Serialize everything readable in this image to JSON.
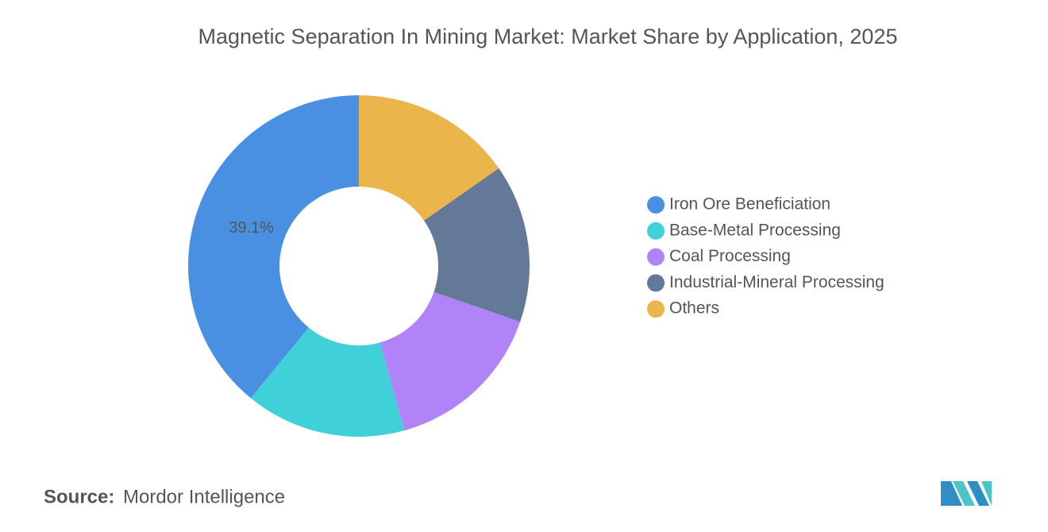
{
  "chart_data": {
    "type": "donut",
    "title": "Magnetic Separation In Mining Market: Market Share by Application, 2025",
    "categories": [
      "Iron Ore Beneficiation",
      "Base-Metal Processing",
      "Coal Processing",
      "Industrial-Mineral Processing",
      "Others"
    ],
    "values": [
      39.1,
      15.2,
      15.4,
      15.0,
      15.3
    ],
    "value_labels": [
      "39.1%",
      null,
      null,
      null,
      null
    ],
    "colors": [
      "#4a90e2",
      "#40d0d8",
      "#b084f8",
      "#647897",
      "#eab54b"
    ],
    "direction": "counterclockwise",
    "legend": "right"
  },
  "source_label": "Source:",
  "source": "Mordor Intelligence"
}
